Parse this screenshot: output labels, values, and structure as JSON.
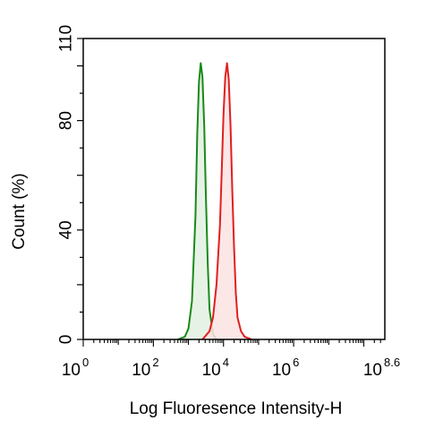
{
  "chart_data": {
    "type": "histogram",
    "title": "",
    "xlabel": "Log Fluoresence Intensity-H",
    "ylabel": "Count  (%)",
    "x_scale": "log10",
    "xlim": [
      1,
      398107170.55
    ],
    "ylim": [
      0,
      110
    ],
    "x_ticks": [
      {
        "base": "10",
        "exp": "0"
      },
      {
        "base": "10",
        "exp": "2"
      },
      {
        "base": "10",
        "exp": "4"
      },
      {
        "base": "10",
        "exp": "6"
      },
      {
        "base": "10",
        "exp": "8.6"
      }
    ],
    "y_ticks": [
      "0",
      "40",
      "80",
      "110"
    ],
    "grid": false,
    "legend": "none",
    "series": [
      {
        "color": "#1a8a1a",
        "fill": "#e3f0e3",
        "points": [
          {
            "x": 501,
            "y": 0
          },
          {
            "x": 794,
            "y": 1
          },
          {
            "x": 1000,
            "y": 4
          },
          {
            "x": 1259,
            "y": 14
          },
          {
            "x": 1585,
            "y": 45
          },
          {
            "x": 1778,
            "y": 75
          },
          {
            "x": 1995,
            "y": 94
          },
          {
            "x": 2239,
            "y": 101
          },
          {
            "x": 2512,
            "y": 96
          },
          {
            "x": 2818,
            "y": 78
          },
          {
            "x": 3162,
            "y": 52
          },
          {
            "x": 3548,
            "y": 28
          },
          {
            "x": 3981,
            "y": 11
          },
          {
            "x": 5012,
            "y": 2
          },
          {
            "x": 6310,
            "y": 0
          }
        ]
      },
      {
        "color": "#e02020",
        "fill": "#fbe3e3",
        "points": [
          {
            "x": 2512,
            "y": 0
          },
          {
            "x": 3981,
            "y": 3
          },
          {
            "x": 5012,
            "y": 8
          },
          {
            "x": 6310,
            "y": 20
          },
          {
            "x": 7943,
            "y": 42
          },
          {
            "x": 8913,
            "y": 62
          },
          {
            "x": 10000,
            "y": 82
          },
          {
            "x": 11220,
            "y": 96
          },
          {
            "x": 12589,
            "y": 101
          },
          {
            "x": 14125,
            "y": 95
          },
          {
            "x": 15849,
            "y": 78
          },
          {
            "x": 17783,
            "y": 55
          },
          {
            "x": 19953,
            "y": 34
          },
          {
            "x": 22387,
            "y": 17
          },
          {
            "x": 25119,
            "y": 8
          },
          {
            "x": 31623,
            "y": 3
          },
          {
            "x": 39811,
            "y": 1
          },
          {
            "x": 63096,
            "y": 0
          }
        ]
      }
    ]
  }
}
